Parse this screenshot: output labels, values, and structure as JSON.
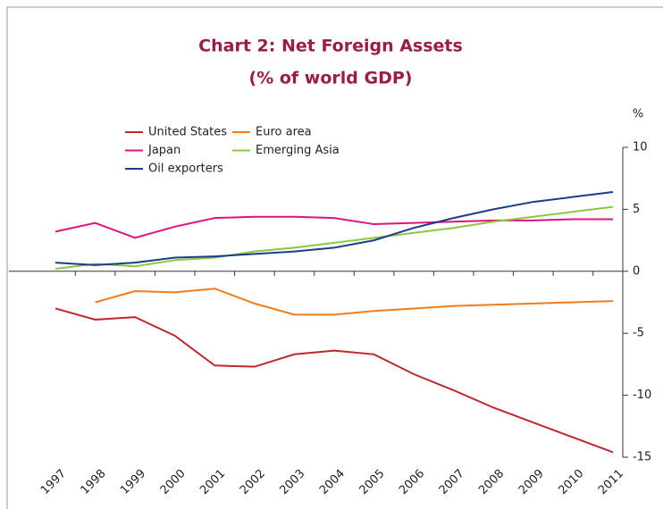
{
  "chart_data": {
    "type": "line",
    "title": "Chart 2: Net Foreign Assets",
    "subtitle": "(% of world GDP)",
    "y_axis_label": "%",
    "categories": [
      "1997",
      "1998",
      "1999",
      "2000",
      "2001",
      "2002",
      "2003",
      "2004",
      "2005",
      "2006",
      "2007",
      "2008",
      "2009",
      "2010",
      "2011"
    ],
    "series": [
      {
        "name": "United States",
        "color": "#c0272d",
        "values": [
          -3.0,
          -3.9,
          -3.7,
          -5.2,
          -7.6,
          -7.7,
          -6.7,
          -6.4,
          -6.7,
          -8.3,
          -9.6,
          -11.0,
          -12.2,
          -13.4,
          -14.6
        ]
      },
      {
        "name": "Euro area",
        "color": "#f07d1a",
        "values": [
          null,
          -2.5,
          -1.6,
          -1.7,
          -1.4,
          -2.6,
          -3.5,
          -3.5,
          -3.2,
          -3.0,
          -2.8,
          -2.7,
          -2.6,
          -2.5,
          -2.4
        ]
      },
      {
        "name": "Japan",
        "color": "#e0127f",
        "values": [
          3.2,
          3.9,
          2.7,
          3.6,
          4.3,
          4.4,
          4.4,
          4.3,
          3.8,
          3.9,
          4.0,
          4.1,
          4.1,
          4.2,
          4.2
        ]
      },
      {
        "name": "Emerging Asia",
        "color": "#8dc63f",
        "values": [
          0.2,
          0.6,
          0.4,
          0.9,
          1.1,
          1.6,
          1.9,
          2.3,
          2.7,
          3.1,
          3.5,
          4.0,
          4.4,
          4.8,
          5.2
        ]
      },
      {
        "name": "Oil exporters",
        "color": "#1a3c8c",
        "values": [
          0.7,
          0.5,
          0.7,
          1.1,
          1.2,
          1.4,
          1.6,
          1.9,
          2.5,
          3.5,
          4.3,
          5.0,
          5.6,
          6.0,
          6.4
        ]
      }
    ],
    "ylim": [
      -15,
      10
    ],
    "yticks": [
      -15,
      -10,
      -5,
      0,
      5,
      10
    ]
  }
}
